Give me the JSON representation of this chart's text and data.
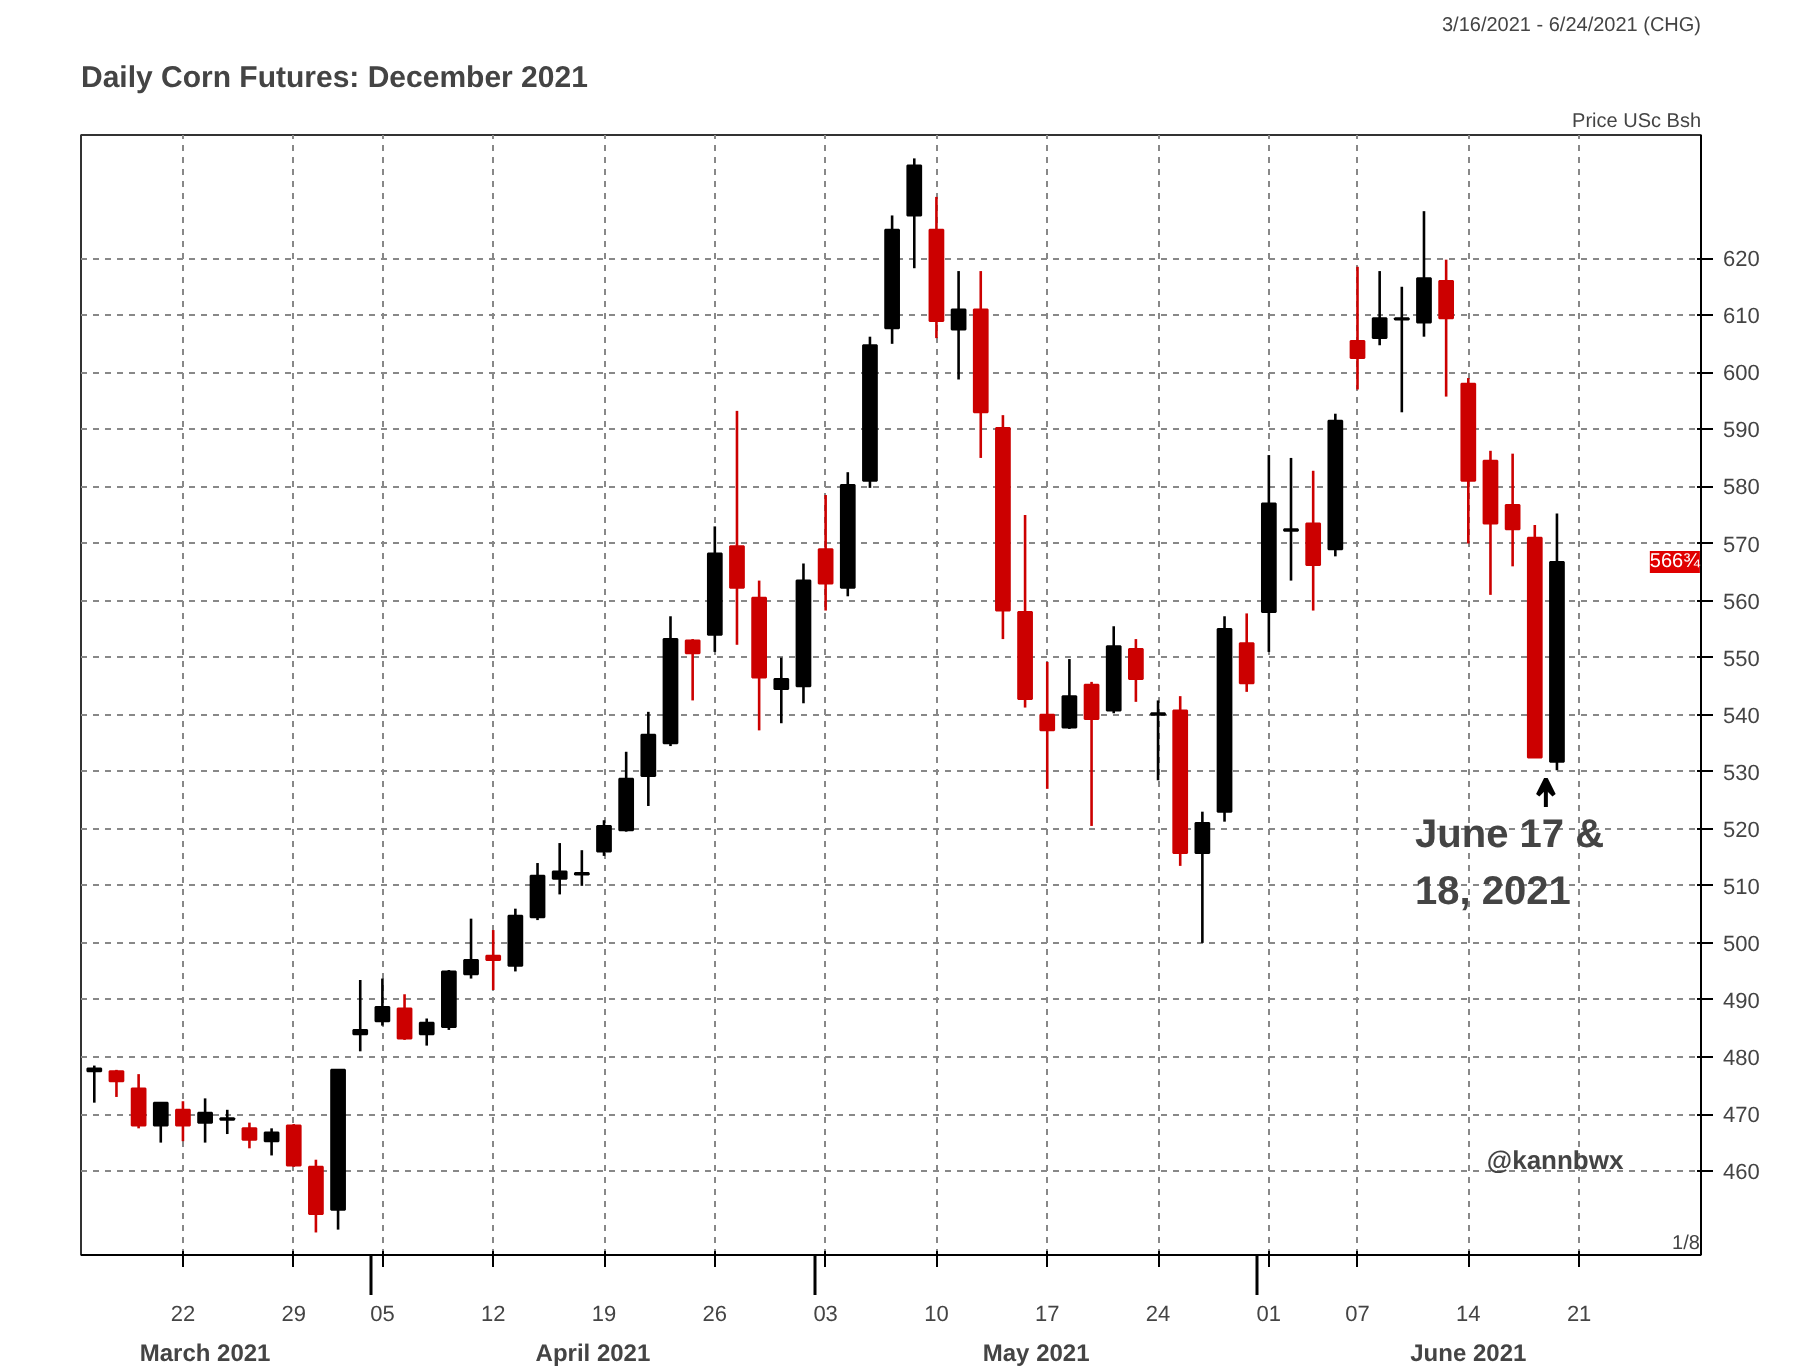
{
  "chart_data": {
    "type": "candlestick",
    "title": "Daily Corn Futures: December 2021",
    "subtitle": "3/16/2021 - 6/24/2021 (CHG)",
    "ylabel": "Price USc Bsh",
    "categories": [
      null,
      null,
      null,
      null,
      "22",
      null,
      null,
      null,
      null,
      "29",
      null,
      null,
      null,
      "05",
      null,
      null,
      null,
      null,
      "12",
      null,
      null,
      null,
      null,
      "19",
      null,
      null,
      null,
      null,
      "26",
      null,
      null,
      null,
      null,
      "03",
      null,
      null,
      null,
      null,
      "10",
      null,
      null,
      null,
      null,
      "17",
      null,
      null,
      null,
      null,
      "24",
      null,
      null,
      null,
      null,
      "01",
      null,
      null,
      null,
      "07",
      null,
      null,
      null,
      null,
      "14",
      null,
      null,
      null,
      null,
      "21",
      null,
      null,
      null
    ],
    "ohlc": [
      [
        477.5,
        478.5,
        472,
        478
      ],
      [
        477.5,
        477.75,
        473,
        475.75
      ],
      [
        474.5,
        477,
        467.5,
        468
      ],
      [
        468,
        472,
        465,
        472
      ],
      [
        470.75,
        472.25,
        465.25,
        468
      ],
      [
        468.5,
        472.75,
        465,
        470.25
      ],
      [
        469,
        470.75,
        466.5,
        469.25
      ],
      [
        467.5,
        468.5,
        464,
        465.5
      ],
      [
        465.25,
        467.5,
        462.75,
        466.75
      ],
      [
        468,
        468.25,
        460.75,
        461
      ],
      [
        460.75,
        462,
        449.25,
        452.5
      ],
      [
        453.25,
        477.75,
        449.75,
        477.75
      ],
      [
        484,
        493.5,
        481,
        484.75
      ],
      [
        486.25,
        493.75,
        485.5,
        488.75
      ],
      [
        488.5,
        491,
        483,
        483.25
      ],
      [
        484,
        486.75,
        482,
        486
      ],
      [
        485.25,
        495.25,
        484.75,
        495
      ],
      [
        494.5,
        504.25,
        493.75,
        497
      ],
      [
        497.75,
        502.25,
        491.75,
        497
      ],
      [
        496,
        506,
        495,
        504.75
      ],
      [
        504.5,
        514,
        504,
        511.75
      ],
      [
        511.25,
        517.5,
        508.5,
        512.5
      ],
      [
        512,
        516.25,
        510,
        512.25
      ],
      [
        516,
        521.5,
        515.25,
        520.5
      ],
      [
        519.75,
        533.5,
        519.5,
        528.75
      ],
      [
        529.25,
        540.5,
        524,
        536.5
      ],
      [
        535,
        557.25,
        534.5,
        553.25
      ],
      [
        553,
        553.25,
        542.5,
        550.75
      ],
      [
        554,
        573,
        551,
        568.25
      ],
      [
        569.5,
        593.25,
        552.25,
        562.25
      ],
      [
        560.5,
        563.5,
        537.25,
        546.5
      ],
      [
        544.5,
        550,
        538.5,
        546.25
      ],
      [
        545,
        566.5,
        542,
        563.5
      ],
      [
        569,
        578.5,
        558.25,
        563
      ],
      [
        562.25,
        582.5,
        560.75,
        580.25
      ],
      [
        581,
        606.25,
        579.75,
        604.75
      ],
      [
        607.75,
        627.5,
        605,
        625
      ],
      [
        627.5,
        637.5,
        618.25,
        636.25
      ],
      [
        625,
        630.75,
        606,
        609
      ],
      [
        607.5,
        617.75,
        598.75,
        611
      ],
      [
        611,
        617.75,
        585,
        593
      ],
      [
        590.25,
        592.5,
        553.25,
        558.25
      ],
      [
        558,
        575,
        541.25,
        542.75
      ],
      [
        540,
        549.25,
        527,
        537.25
      ],
      [
        537.75,
        549.75,
        537.5,
        543.25
      ],
      [
        545.25,
        545.75,
        520.5,
        539.25
      ],
      [
        540.75,
        555.5,
        540.25,
        552
      ],
      [
        551.5,
        553.25,
        542.25,
        546.25
      ],
      [
        540,
        542.5,
        528.5,
        540.25
      ],
      [
        540.75,
        543.25,
        513.5,
        515.75
      ],
      [
        515.75,
        523,
        500,
        521
      ],
      [
        523,
        557.25,
        521.25,
        555
      ],
      [
        552.5,
        557.75,
        544,
        545.5
      ],
      [
        558,
        585.5,
        551,
        577
      ],
      [
        572.25,
        585,
        563.5,
        572.5
      ],
      [
        573.5,
        582.75,
        558.25,
        566.25
      ],
      [
        569,
        592.75,
        567.75,
        591.5
      ],
      [
        605.5,
        618.5,
        597,
        602.5
      ],
      [
        606,
        617.75,
        604.75,
        609.5
      ],
      [
        609.25,
        615,
        593,
        609.5
      ],
      [
        608.75,
        628.25,
        606.25,
        616.5
      ],
      [
        616,
        619.75,
        595.75,
        609.5
      ],
      [
        598,
        599,
        570,
        581
      ],
      [
        584.5,
        586.25,
        561,
        573.5
      ],
      [
        576.75,
        585.75,
        566,
        572.5
      ],
      [
        571,
        573.25,
        532.5,
        532.5
      ],
      [
        531.75,
        575.25,
        530.25,
        566.75
      ],
      null,
      null,
      null,
      null
    ],
    "colors": [
      "#000000",
      "#cc0000",
      "#cc0000",
      "#000000",
      "#cc0000",
      "#000000",
      "#000000",
      "#cc0000",
      "#000000",
      "#cc0000",
      "#cc0000",
      "#000000",
      "#000000",
      "#000000",
      "#cc0000",
      "#000000",
      "#000000",
      "#000000",
      "#cc0000",
      "#000000",
      "#000000",
      "#000000",
      "#000000",
      "#000000",
      "#000000",
      "#000000",
      "#000000",
      "#cc0000",
      "#000000",
      "#cc0000",
      "#cc0000",
      "#000000",
      "#000000",
      "#cc0000",
      "#000000",
      "#000000",
      "#000000",
      "#000000",
      "#cc0000",
      "#000000",
      "#cc0000",
      "#cc0000",
      "#cc0000",
      "#cc0000",
      "#000000",
      "#cc0000",
      "#000000",
      "#cc0000",
      "#000000",
      "#cc0000",
      "#000000",
      "#000000",
      "#cc0000",
      "#000000",
      "#000000",
      "#cc0000",
      "#000000",
      "#cc0000",
      "#000000",
      "#000000",
      "#000000",
      "#cc0000",
      "#cc0000",
      "#cc0000",
      "#cc0000",
      "#cc0000",
      "#000000",
      null,
      null,
      null,
      null
    ],
    "ylim": [
      445.3,
      641.6
    ],
    "yticks": [
      460,
      470,
      480,
      490,
      500,
      510,
      520,
      530,
      540,
      550,
      560,
      570,
      580,
      590,
      600,
      610,
      620
    ],
    "grid": true,
    "annotations": [
      "March 2021",
      "April 2021",
      "May 2021",
      "June 2021",
      "June 17 &\n18, 2021",
      {
        "text": "566¾",
        "y": 566.75
      },
      "@kannbwx",
      "1/8"
    ]
  }
}
